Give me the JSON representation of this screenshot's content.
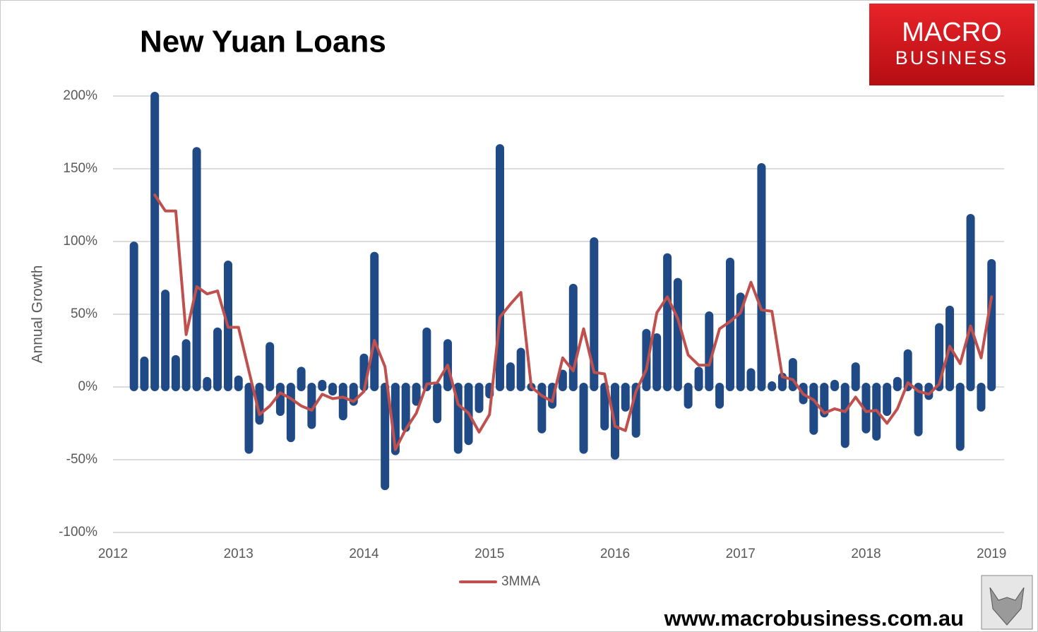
{
  "chart_data": {
    "type": "bar_line",
    "title": "New Yuan Loans",
    "y_label": "Annual Growth",
    "logo": {
      "line1": "MACRO",
      "line2": "BUSINESS"
    },
    "footer": "www.macrobusiness.com.au",
    "x": [
      2012.167,
      2012.25,
      2012.333,
      2012.417,
      2012.5,
      2012.583,
      2012.667,
      2012.75,
      2012.833,
      2012.917,
      2013.0,
      2013.083,
      2013.167,
      2013.25,
      2013.333,
      2013.417,
      2013.5,
      2013.583,
      2013.667,
      2013.75,
      2013.833,
      2013.917,
      2014.0,
      2014.083,
      2014.167,
      2014.25,
      2014.333,
      2014.417,
      2014.5,
      2014.583,
      2014.667,
      2014.75,
      2014.833,
      2014.917,
      2015.0,
      2015.083,
      2015.167,
      2015.25,
      2015.333,
      2015.417,
      2015.5,
      2015.583,
      2015.667,
      2015.75,
      2015.833,
      2015.917,
      2016.0,
      2016.083,
      2016.167,
      2016.25,
      2016.333,
      2016.417,
      2016.5,
      2016.583,
      2016.667,
      2016.75,
      2016.833,
      2016.917,
      2017.0,
      2017.083,
      2017.167,
      2017.25,
      2017.333,
      2017.417,
      2017.5,
      2017.583,
      2017.667,
      2017.75,
      2017.833,
      2017.917,
      2018.0,
      2018.083,
      2018.167,
      2018.25,
      2018.333,
      2018.417,
      2018.5,
      2018.583,
      2018.667,
      2018.75,
      2018.833,
      2018.917,
      2019.0
    ],
    "series": [
      {
        "type": "bar",
        "color": "#1f4a85",
        "values": [
          97,
          18,
          200,
          64,
          19,
          30,
          162,
          4,
          38,
          84,
          5,
          -43,
          -23,
          28,
          -17,
          -35,
          11,
          -26,
          2,
          -3,
          -20,
          -10,
          20,
          90,
          -68,
          -44,
          -28,
          -10,
          38,
          -22,
          30,
          -43,
          -37,
          -15,
          -5,
          164,
          14,
          24,
          0,
          -29,
          -12,
          9,
          68,
          -43,
          100,
          -27,
          -47,
          -14,
          -32,
          37,
          34,
          89,
          72,
          -12,
          11,
          49,
          -12,
          86,
          62,
          10,
          151,
          1,
          7,
          17,
          -9,
          -30,
          -18,
          2,
          -39,
          14,
          -29,
          -34,
          -17,
          4,
          23,
          -31,
          -6,
          41,
          53,
          -41,
          116,
          -14,
          85
        ]
      },
      {
        "type": "line",
        "name": "3MMA",
        "color": "#c0504d",
        "values": [
          null,
          null,
          132,
          121,
          121,
          36,
          69,
          64,
          66,
          41,
          41,
          11,
          -19,
          -13,
          -4,
          -8,
          -13,
          -16,
          -5,
          -8,
          -7,
          -10,
          -3,
          32,
          14,
          -43,
          -29,
          -18,
          2,
          3,
          15,
          -12,
          -18,
          -31,
          -19,
          48,
          57,
          65,
          0,
          -6,
          -10,
          20,
          11,
          40,
          10,
          9,
          -27,
          -30,
          -3,
          12,
          51,
          62,
          47,
          22,
          15,
          15,
          40,
          45,
          51,
          72,
          53,
          52,
          7,
          5,
          -5,
          -9,
          -18,
          -15,
          -17,
          -7,
          -17,
          -16,
          -25,
          -15,
          3,
          -3,
          -5,
          2,
          28,
          16,
          42,
          20,
          62
        ]
      }
    ],
    "xlim": [
      2012,
      2019.1
    ],
    "xticks": [
      2012,
      2013,
      2014,
      2015,
      2016,
      2017,
      2018,
      2019
    ],
    "ylim": [
      -100,
      200
    ],
    "yticks": [
      {
        "value": -100,
        "label": "-100%"
      },
      {
        "value": -50,
        "label": "-50%"
      },
      {
        "value": 0,
        "label": "0%"
      },
      {
        "value": 50,
        "label": "50%"
      },
      {
        "value": 100,
        "label": "100%"
      },
      {
        "value": 150,
        "label": "150%"
      },
      {
        "value": 200,
        "label": "200%"
      }
    ],
    "grid": true,
    "legend": "bottom"
  }
}
